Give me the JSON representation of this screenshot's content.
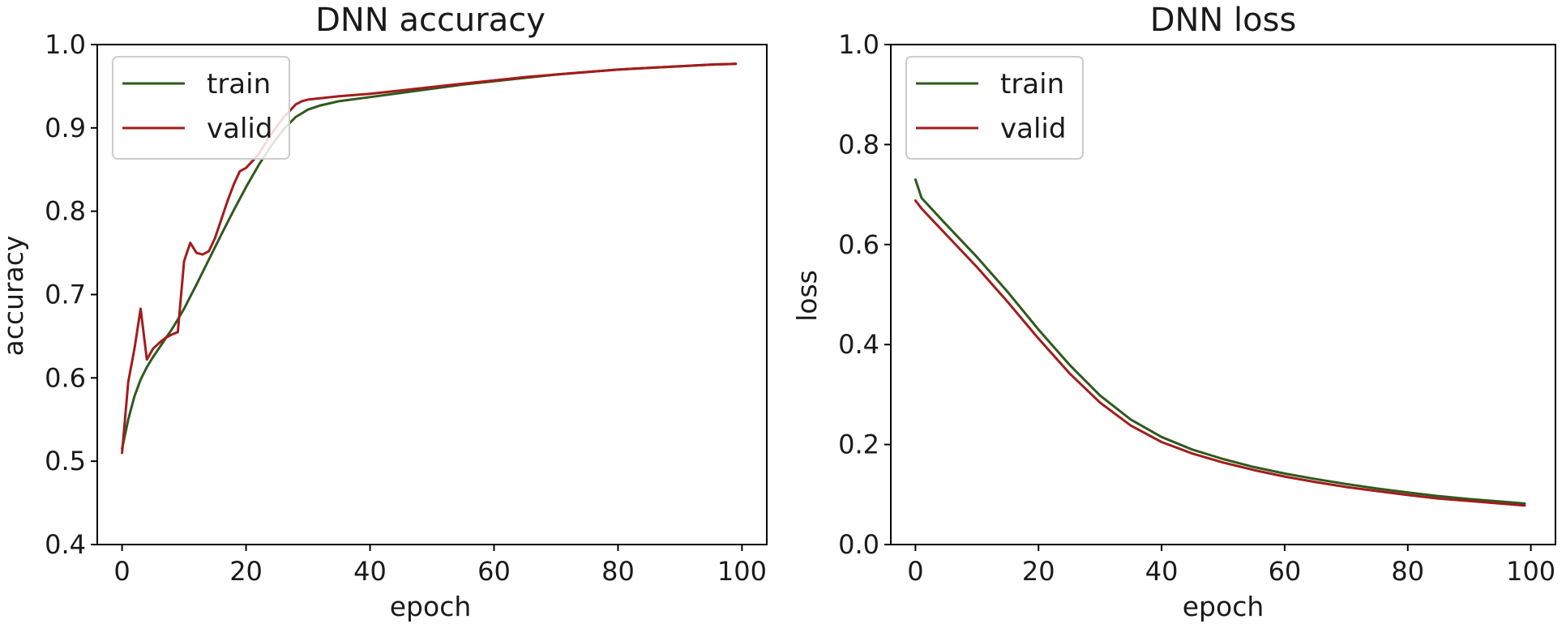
{
  "chart_data": [
    {
      "type": "line",
      "title": "DNN accuracy",
      "xlabel": "epoch",
      "ylabel": "accuracy",
      "xlim": [
        -4,
        104
      ],
      "ylim": [
        0.4,
        1.0
      ],
      "xticks": [
        "0",
        "20",
        "40",
        "60",
        "80",
        "100"
      ],
      "yticks": [
        "0.4",
        "0.5",
        "0.6",
        "0.7",
        "0.8",
        "0.9",
        "1.0"
      ],
      "legend_position": "top-left",
      "grid": false,
      "series": [
        {
          "name": "train",
          "color": "#2f5a1e",
          "x": [
            0,
            1,
            2,
            3,
            4,
            5,
            6,
            7,
            8,
            9,
            10,
            12,
            14,
            16,
            18,
            20,
            22,
            24,
            26,
            28,
            30,
            32,
            35,
            40,
            45,
            50,
            55,
            60,
            65,
            70,
            75,
            80,
            85,
            90,
            95,
            99
          ],
          "y": [
            0.515,
            0.55,
            0.578,
            0.598,
            0.613,
            0.625,
            0.636,
            0.647,
            0.658,
            0.67,
            0.683,
            0.712,
            0.742,
            0.772,
            0.801,
            0.829,
            0.855,
            0.878,
            0.898,
            0.913,
            0.922,
            0.927,
            0.932,
            0.937,
            0.942,
            0.947,
            0.952,
            0.956,
            0.96,
            0.964,
            0.967,
            0.97,
            0.972,
            0.974,
            0.976,
            0.977
          ]
        },
        {
          "name": "valid",
          "color": "#a31c1c",
          "x": [
            0,
            1,
            2,
            3,
            4,
            5,
            6,
            7,
            8,
            9,
            10,
            11,
            12,
            13,
            14,
            15,
            16,
            17,
            18,
            19,
            20,
            22,
            24,
            26,
            28,
            29,
            30,
            35,
            40,
            45,
            50,
            55,
            60,
            65,
            70,
            75,
            80,
            85,
            90,
            95,
            99
          ],
          "y": [
            0.51,
            0.595,
            0.635,
            0.683,
            0.622,
            0.635,
            0.642,
            0.648,
            0.652,
            0.655,
            0.74,
            0.762,
            0.75,
            0.748,
            0.752,
            0.768,
            0.79,
            0.812,
            0.832,
            0.848,
            0.852,
            0.868,
            0.892,
            0.912,
            0.928,
            0.932,
            0.934,
            0.938,
            0.941,
            0.945,
            0.949,
            0.953,
            0.957,
            0.961,
            0.964,
            0.967,
            0.97,
            0.972,
            0.974,
            0.976,
            0.977
          ]
        }
      ]
    },
    {
      "type": "line",
      "title": "DNN loss",
      "xlabel": "epoch",
      "ylabel": "loss",
      "xlim": [
        -4,
        104
      ],
      "ylim": [
        0.0,
        1.0
      ],
      "xticks": [
        "0",
        "20",
        "40",
        "60",
        "80",
        "100"
      ],
      "yticks": [
        "0.0",
        "0.2",
        "0.4",
        "0.6",
        "0.8",
        "1.0"
      ],
      "legend_position": "top-left",
      "grid": false,
      "series": [
        {
          "name": "train",
          "color": "#2f5a1e",
          "x": [
            0,
            1,
            5,
            10,
            15,
            20,
            25,
            30,
            35,
            40,
            45,
            50,
            55,
            60,
            65,
            70,
            75,
            80,
            85,
            90,
            95,
            99
          ],
          "y": [
            0.73,
            0.693,
            0.64,
            0.575,
            0.505,
            0.43,
            0.36,
            0.298,
            0.25,
            0.215,
            0.19,
            0.171,
            0.155,
            0.142,
            0.131,
            0.121,
            0.112,
            0.104,
            0.097,
            0.091,
            0.086,
            0.082
          ]
        },
        {
          "name": "valid",
          "color": "#a31c1c",
          "x": [
            0,
            1,
            5,
            10,
            15,
            20,
            25,
            30,
            35,
            40,
            45,
            50,
            55,
            60,
            65,
            70,
            75,
            80,
            85,
            90,
            95,
            99
          ],
          "y": [
            0.688,
            0.672,
            0.62,
            0.555,
            0.485,
            0.412,
            0.343,
            0.284,
            0.238,
            0.205,
            0.182,
            0.164,
            0.149,
            0.136,
            0.125,
            0.115,
            0.107,
            0.099,
            0.092,
            0.087,
            0.082,
            0.078
          ]
        }
      ]
    }
  ]
}
